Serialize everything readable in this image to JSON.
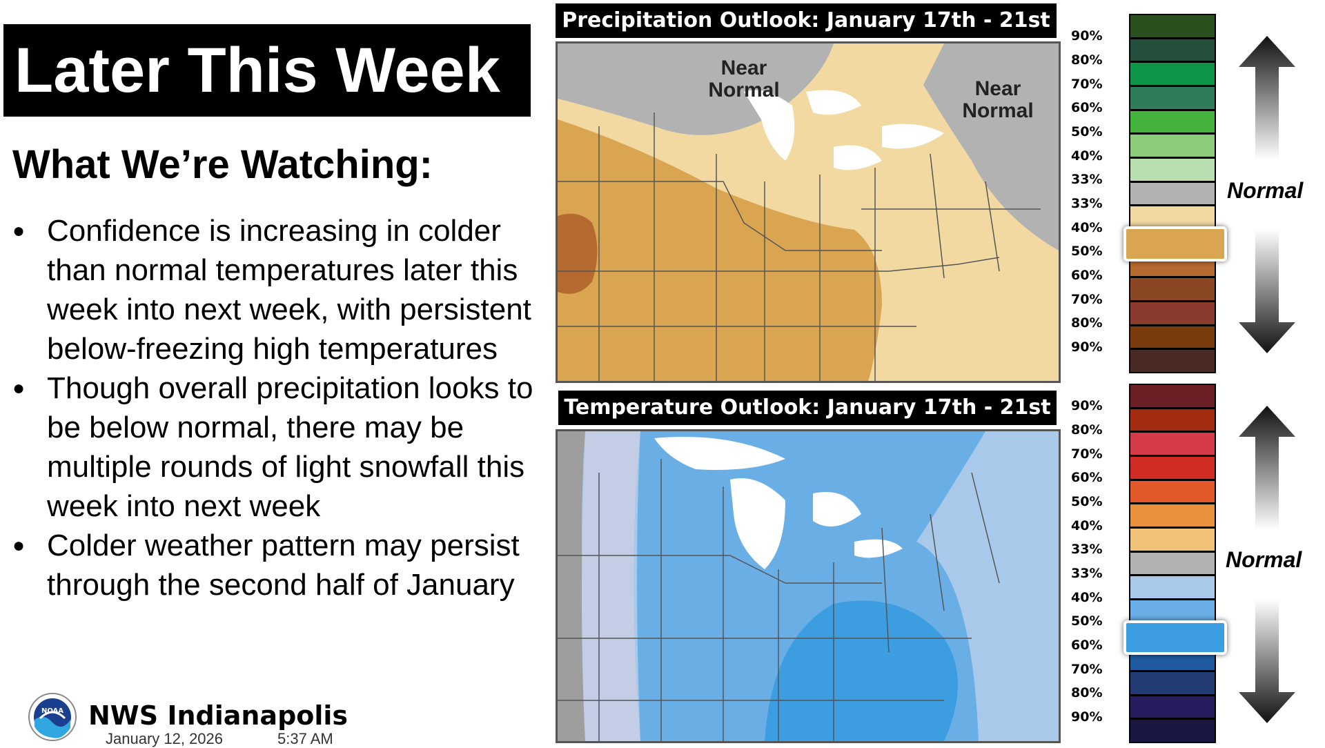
{
  "header": {
    "title": "Later This Week"
  },
  "section": {
    "heading": "What We’re Watching:"
  },
  "bullets": [
    "Confidence is increasing in colder than normal temperatures later this week into next week, with persistent below-freezing high temperatures",
    "Though overall precipitation looks to be below normal, there may be multiple rounds of light snowfall this week into next week",
    "Colder weather pattern may persist through the second half of January"
  ],
  "footer": {
    "office": "NWS Indianapolis",
    "date": "January 12, 2026",
    "time": "5:37 AM",
    "logo_text": "NOAA"
  },
  "precip": {
    "title": "Precipitation Outlook: January 17th - 21st",
    "map_labels": [
      "Near",
      "Normal",
      "Near",
      "Normal"
    ],
    "legend_upper": [
      "90%",
      "80%",
      "70%",
      "60%",
      "50%",
      "40%",
      "33%"
    ],
    "legend_lower": [
      "33%",
      "40%",
      "50%",
      "60%",
      "70%",
      "80%",
      "90%"
    ],
    "normal_label": "Normal",
    "colors_upper": [
      "#2c4f1e",
      "#234f3c",
      "#0f9549",
      "#2f7c5b",
      "#44b23c",
      "#8ccc7a",
      "#b9deb0"
    ],
    "color_normal": "#b2b2b2",
    "colors_lower": [
      "#f2d9a1",
      "#d9a550",
      "#b56a2f",
      "#8b4723",
      "#8b3a2e",
      "#7a3b0d",
      "#4a2a25"
    ],
    "selected": "40%"
  },
  "temp": {
    "title": "Temperature Outlook: January 17th - 21st",
    "legend_upper": [
      "90%",
      "80%",
      "70%",
      "60%",
      "50%",
      "40%",
      "33%"
    ],
    "legend_lower": [
      "33%",
      "40%",
      "50%",
      "60%",
      "70%",
      "80%",
      "90%"
    ],
    "normal_label": "Normal",
    "colors_upper": [
      "#6b1f25",
      "#a32c10",
      "#d43a47",
      "#d02b25",
      "#e25a2c",
      "#e8923e",
      "#f0c27a"
    ],
    "color_normal": "#b2b2b2",
    "colors_lower": [
      "#a9c9ea",
      "#6aaee6",
      "#3c9de0",
      "#1f5aa0",
      "#233b73",
      "#271d5e",
      "#1a1745"
    ],
    "selected": "50%"
  }
}
